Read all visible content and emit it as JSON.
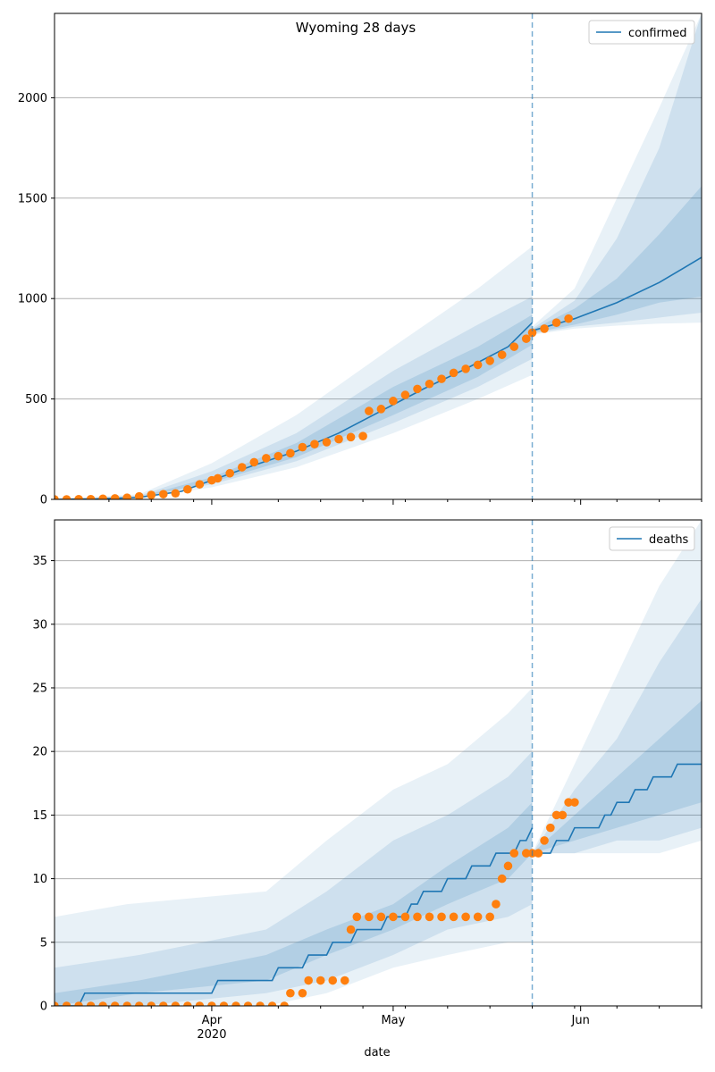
{
  "colors": {
    "model_line": "#1f77b4",
    "observed": "#ff7f0e",
    "band": "#1f77b4",
    "grid": "#b0b0b0",
    "cutoff_line": "#1f77b4"
  },
  "x_axis": {
    "label": "date",
    "ticks": [
      {
        "date": "2020-04-01",
        "label": "Apr",
        "sublabel": "2020"
      },
      {
        "date": "2020-05-01",
        "label": "May",
        "sublabel": ""
      },
      {
        "date": "2020-06-01",
        "label": "Jun",
        "sublabel": ""
      }
    ],
    "minor_ticks": [
      "2020-03-15",
      "2020-03-22",
      "2020-03-29",
      "2020-04-12",
      "2020-04-19",
      "2020-04-26",
      "2020-05-03",
      "2020-05-10",
      "2020-05-17",
      "2020-05-24",
      "2020-05-31",
      "2020-06-07",
      "2020-06-14",
      "2020-06-21"
    ],
    "range": [
      "2020-03-06",
      "2020-06-21"
    ],
    "cutoff_date": "2020-05-24"
  },
  "chart_data": [
    {
      "type": "line",
      "title": "Wyoming 28 days",
      "legend": {
        "label": "confirmed",
        "position": "top-right"
      },
      "ylim": [
        0,
        2420
      ],
      "yticks": [
        0,
        500,
        1000,
        1500,
        2000
      ],
      "grid": "y",
      "model_curve": [
        [
          "2020-03-06",
          0
        ],
        [
          "2020-03-13",
          2
        ],
        [
          "2020-03-20",
          10
        ],
        [
          "2020-03-27",
          40
        ],
        [
          "2020-04-01",
          95
        ],
        [
          "2020-04-08",
          170
        ],
        [
          "2020-04-15",
          240
        ],
        [
          "2020-04-22",
          330
        ],
        [
          "2020-04-29",
          440
        ],
        [
          "2020-05-06",
          550
        ],
        [
          "2020-05-13",
          650
        ],
        [
          "2020-05-20",
          760
        ],
        [
          "2020-05-24",
          880
        ]
      ],
      "forecast_curve": [
        [
          "2020-05-24",
          840
        ],
        [
          "2020-05-31",
          900
        ],
        [
          "2020-06-07",
          980
        ],
        [
          "2020-06-14",
          1080
        ],
        [
          "2020-06-21",
          1205
        ]
      ],
      "bands": [
        {
          "level": "outer",
          "points": [
            [
              "2020-03-06",
              0,
              3
            ],
            [
              "2020-03-20",
              4,
              25
            ],
            [
              "2020-04-01",
              60,
              180
            ],
            [
              "2020-04-15",
              160,
              420
            ],
            [
              "2020-05-01",
              330,
              760
            ],
            [
              "2020-05-15",
              500,
              1050
            ],
            [
              "2020-05-24",
              620,
              1260
            ]
          ]
        },
        {
          "level": "middle",
          "points": [
            [
              "2020-03-06",
              0,
              2
            ],
            [
              "2020-03-20",
              6,
              18
            ],
            [
              "2020-04-01",
              75,
              140
            ],
            [
              "2020-04-15",
              190,
              330
            ],
            [
              "2020-05-01",
              380,
              640
            ],
            [
              "2020-05-15",
              560,
              870
            ],
            [
              "2020-05-24",
              700,
              1010
            ]
          ]
        },
        {
          "level": "inner",
          "points": [
            [
              "2020-03-06",
              0,
              1
            ],
            [
              "2020-03-20",
              8,
              13
            ],
            [
              "2020-04-01",
              85,
              110
            ],
            [
              "2020-04-15",
              210,
              280
            ],
            [
              "2020-05-01",
              420,
              560
            ],
            [
              "2020-05-15",
              610,
              760
            ],
            [
              "2020-05-24",
              770,
              920
            ]
          ]
        },
        {
          "level": "outer",
          "points": [
            [
              "2020-05-24",
              820,
              860
            ],
            [
              "2020-05-31",
              850,
              1050
            ],
            [
              "2020-06-07",
              865,
              1500
            ],
            [
              "2020-06-14",
              875,
              1950
            ],
            [
              "2020-06-21",
              880,
              2420
            ]
          ]
        },
        {
          "level": "middle",
          "points": [
            [
              "2020-05-24",
              825,
              850
            ],
            [
              "2020-05-31",
              860,
              990
            ],
            [
              "2020-06-07",
              880,
              1300
            ],
            [
              "2020-06-14",
              905,
              1750
            ],
            [
              "2020-06-21",
              930,
              2420
            ]
          ]
        },
        {
          "level": "inner",
          "points": [
            [
              "2020-05-24",
              830,
              845
            ],
            [
              "2020-05-31",
              870,
              950
            ],
            [
              "2020-06-07",
              920,
              1100
            ],
            [
              "2020-06-14",
              980,
              1320
            ],
            [
              "2020-06-21",
              1010,
              1560
            ]
          ]
        }
      ],
      "observed": [
        [
          "2020-03-06",
          0
        ],
        [
          "2020-03-08",
          0
        ],
        [
          "2020-03-10",
          1
        ],
        [
          "2020-03-12",
          1
        ],
        [
          "2020-03-14",
          3
        ],
        [
          "2020-03-16",
          5
        ],
        [
          "2020-03-18",
          8
        ],
        [
          "2020-03-20",
          15
        ],
        [
          "2020-03-22",
          22
        ],
        [
          "2020-03-24",
          26
        ],
        [
          "2020-03-26",
          30
        ],
        [
          "2020-03-28",
          50
        ],
        [
          "2020-03-30",
          75
        ],
        [
          "2020-04-01",
          95
        ],
        [
          "2020-04-02",
          105
        ],
        [
          "2020-04-04",
          130
        ],
        [
          "2020-04-06",
          160
        ],
        [
          "2020-04-08",
          185
        ],
        [
          "2020-04-10",
          205
        ],
        [
          "2020-04-12",
          215
        ],
        [
          "2020-04-14",
          230
        ],
        [
          "2020-04-16",
          260
        ],
        [
          "2020-04-18",
          275
        ],
        [
          "2020-04-20",
          285
        ],
        [
          "2020-04-22",
          300
        ],
        [
          "2020-04-24",
          310
        ],
        [
          "2020-04-26",
          315
        ],
        [
          "2020-04-27",
          440
        ],
        [
          "2020-04-29",
          450
        ],
        [
          "2020-05-01",
          490
        ],
        [
          "2020-05-03",
          520
        ],
        [
          "2020-05-05",
          550
        ],
        [
          "2020-05-07",
          575
        ],
        [
          "2020-05-09",
          600
        ],
        [
          "2020-05-11",
          630
        ],
        [
          "2020-05-13",
          650
        ],
        [
          "2020-05-15",
          670
        ],
        [
          "2020-05-17",
          690
        ],
        [
          "2020-05-19",
          720
        ],
        [
          "2020-05-21",
          760
        ],
        [
          "2020-05-23",
          800
        ],
        [
          "2020-05-24",
          830
        ],
        [
          "2020-05-26",
          850
        ],
        [
          "2020-05-28",
          880
        ],
        [
          "2020-05-30",
          900
        ]
      ]
    },
    {
      "type": "line",
      "title": "",
      "legend": {
        "label": "deaths",
        "position": "top-right"
      },
      "ylim": [
        0,
        38.2
      ],
      "yticks": [
        0,
        5,
        10,
        15,
        20,
        25,
        30,
        35
      ],
      "grid": "y",
      "model_curve": [
        [
          "2020-03-06",
          0
        ],
        [
          "2020-03-10",
          0
        ],
        [
          "2020-03-11",
          1
        ],
        [
          "2020-04-01",
          1
        ],
        [
          "2020-04-02",
          2
        ],
        [
          "2020-04-11",
          2
        ],
        [
          "2020-04-12",
          3
        ],
        [
          "2020-04-16",
          3
        ],
        [
          "2020-04-17",
          4
        ],
        [
          "2020-04-20",
          4
        ],
        [
          "2020-04-21",
          5
        ],
        [
          "2020-04-24",
          5
        ],
        [
          "2020-04-25",
          6
        ],
        [
          "2020-04-29",
          6
        ],
        [
          "2020-04-30",
          7
        ],
        [
          "2020-05-03",
          7
        ],
        [
          "2020-05-04",
          8
        ],
        [
          "2020-05-05",
          8
        ],
        [
          "2020-05-06",
          9
        ],
        [
          "2020-05-09",
          9
        ],
        [
          "2020-05-10",
          10
        ],
        [
          "2020-05-13",
          10
        ],
        [
          "2020-05-14",
          11
        ],
        [
          "2020-05-17",
          11
        ],
        [
          "2020-05-18",
          12
        ],
        [
          "2020-05-21",
          12
        ],
        [
          "2020-05-22",
          13
        ],
        [
          "2020-05-23",
          13
        ],
        [
          "2020-05-24",
          14
        ]
      ],
      "forecast_curve": [
        [
          "2020-05-24",
          12
        ],
        [
          "2020-05-27",
          12
        ],
        [
          "2020-05-28",
          13
        ],
        [
          "2020-05-30",
          13
        ],
        [
          "2020-05-31",
          14
        ],
        [
          "2020-06-04",
          14
        ],
        [
          "2020-06-05",
          15
        ],
        [
          "2020-06-06",
          15
        ],
        [
          "2020-06-07",
          16
        ],
        [
          "2020-06-09",
          16
        ],
        [
          "2020-06-10",
          17
        ],
        [
          "2020-06-12",
          17
        ],
        [
          "2020-06-13",
          18
        ],
        [
          "2020-06-16",
          18
        ],
        [
          "2020-06-17",
          19
        ],
        [
          "2020-06-21",
          19
        ]
      ],
      "bands": [
        {
          "level": "outer",
          "points": [
            [
              "2020-03-06",
              0,
              7
            ],
            [
              "2020-03-18",
              0,
              8
            ],
            [
              "2020-04-10",
              0,
              9
            ],
            [
              "2020-04-20",
              1,
              13
            ],
            [
              "2020-05-01",
              3,
              17
            ],
            [
              "2020-05-10",
              4,
              19
            ],
            [
              "2020-05-20",
              5,
              23
            ],
            [
              "2020-05-24",
              5,
              25
            ]
          ]
        },
        {
          "level": "middle",
          "points": [
            [
              "2020-03-06",
              0,
              3
            ],
            [
              "2020-03-20",
              0,
              4
            ],
            [
              "2020-04-10",
              1,
              6
            ],
            [
              "2020-04-20",
              2,
              9
            ],
            [
              "2020-05-01",
              4,
              13
            ],
            [
              "2020-05-10",
              6,
              15
            ],
            [
              "2020-05-20",
              7,
              18
            ],
            [
              "2020-05-24",
              8,
              20
            ]
          ]
        },
        {
          "level": "inner",
          "points": [
            [
              "2020-03-06",
              0,
              1
            ],
            [
              "2020-03-20",
              1,
              2
            ],
            [
              "2020-04-10",
              2,
              4
            ],
            [
              "2020-04-20",
              4,
              6
            ],
            [
              "2020-05-01",
              6,
              8
            ],
            [
              "2020-05-10",
              8,
              11
            ],
            [
              "2020-05-20",
              10,
              14
            ],
            [
              "2020-05-24",
              12,
              16
            ]
          ]
        },
        {
          "level": "outer",
          "points": [
            [
              "2020-05-24",
              12,
              12
            ],
            [
              "2020-05-31",
              12,
              19
            ],
            [
              "2020-06-07",
              12,
              26
            ],
            [
              "2020-06-14",
              12,
              33
            ],
            [
              "2020-06-21",
              13,
              38.2
            ]
          ]
        },
        {
          "level": "middle",
          "points": [
            [
              "2020-05-24",
              12,
              12
            ],
            [
              "2020-05-31",
              12,
              17
            ],
            [
              "2020-06-07",
              13,
              21
            ],
            [
              "2020-06-14",
              13,
              27
            ],
            [
              "2020-06-21",
              14,
              32
            ]
          ]
        },
        {
          "level": "inner",
          "points": [
            [
              "2020-05-24",
              12,
              12
            ],
            [
              "2020-05-31",
              13,
              15
            ],
            [
              "2020-06-07",
              14,
              18
            ],
            [
              "2020-06-14",
              15,
              21
            ],
            [
              "2020-06-21",
              16,
              24
            ]
          ]
        }
      ],
      "observed": [
        [
          "2020-03-06",
          0
        ],
        [
          "2020-03-08",
          0
        ],
        [
          "2020-03-10",
          0
        ],
        [
          "2020-03-12",
          0
        ],
        [
          "2020-03-14",
          0
        ],
        [
          "2020-03-16",
          0
        ],
        [
          "2020-03-18",
          0
        ],
        [
          "2020-03-20",
          0
        ],
        [
          "2020-03-22",
          0
        ],
        [
          "2020-03-24",
          0
        ],
        [
          "2020-03-26",
          0
        ],
        [
          "2020-03-28",
          0
        ],
        [
          "2020-03-30",
          0
        ],
        [
          "2020-04-01",
          0
        ],
        [
          "2020-04-03",
          0
        ],
        [
          "2020-04-05",
          0
        ],
        [
          "2020-04-07",
          0
        ],
        [
          "2020-04-09",
          0
        ],
        [
          "2020-04-11",
          0
        ],
        [
          "2020-04-13",
          0
        ],
        [
          "2020-04-14",
          1
        ],
        [
          "2020-04-16",
          1
        ],
        [
          "2020-04-17",
          2
        ],
        [
          "2020-04-19",
          2
        ],
        [
          "2020-04-21",
          2
        ],
        [
          "2020-04-23",
          2
        ],
        [
          "2020-04-24",
          6
        ],
        [
          "2020-04-25",
          7
        ],
        [
          "2020-04-27",
          7
        ],
        [
          "2020-04-29",
          7
        ],
        [
          "2020-05-01",
          7
        ],
        [
          "2020-05-03",
          7
        ],
        [
          "2020-05-05",
          7
        ],
        [
          "2020-05-07",
          7
        ],
        [
          "2020-05-09",
          7
        ],
        [
          "2020-05-11",
          7
        ],
        [
          "2020-05-13",
          7
        ],
        [
          "2020-05-15",
          7
        ],
        [
          "2020-05-17",
          7
        ],
        [
          "2020-05-18",
          8
        ],
        [
          "2020-05-19",
          10
        ],
        [
          "2020-05-20",
          11
        ],
        [
          "2020-05-21",
          12
        ],
        [
          "2020-05-23",
          12
        ],
        [
          "2020-05-24",
          12
        ],
        [
          "2020-05-25",
          12
        ],
        [
          "2020-05-26",
          13
        ],
        [
          "2020-05-27",
          14
        ],
        [
          "2020-05-28",
          15
        ],
        [
          "2020-05-29",
          15
        ],
        [
          "2020-05-30",
          16
        ],
        [
          "2020-05-31",
          16
        ]
      ]
    }
  ]
}
